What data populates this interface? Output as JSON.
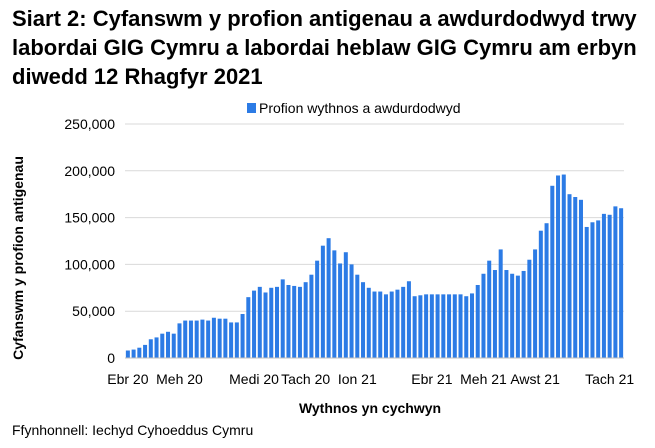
{
  "title": "Siart 2: Cyfanswm y profion antigenau a awdurdodwyd trwy labordai GIG Cymru a labordai heblaw GIG Cymru am erbyn diwedd 12 Rhagfyr 2021",
  "source": "Ffynhonnell: Iechyd Cyhoeddus Cymru",
  "colors": {
    "bar": "#2c7be5",
    "grid": "#d9d9d9"
  },
  "chart_data": {
    "type": "bar",
    "title": "Siart 2: Cyfanswm y profion antigenau a awdurdodwyd trwy labordai GIG Cymru a labordai heblaw GIG Cymru am erbyn diwedd 12 Rhagfyr 2021",
    "xlabel": "Wythnos yn cychwyn",
    "ylabel": "Cyfanswm y profion antigenau",
    "ylim": [
      0,
      250000
    ],
    "yticks": [
      0,
      50000,
      100000,
      150000,
      200000,
      250000
    ],
    "ytick_labels": [
      "0",
      "50,000",
      "100,000",
      "150,000",
      "200,000",
      "250,000"
    ],
    "xtick_labels": [
      {
        "label": "Ebr 20",
        "index": 0
      },
      {
        "label": "Meh 20",
        "index": 9
      },
      {
        "label": "Medi 20",
        "index": 22
      },
      {
        "label": "Tach 20",
        "index": 31
      },
      {
        "label": "Ion 21",
        "index": 40
      },
      {
        "label": "Ebr 21",
        "index": 53
      },
      {
        "label": "Meh 21",
        "index": 62
      },
      {
        "label": "Awst 21",
        "index": 71
      },
      {
        "label": "Tach 21",
        "index": 84
      }
    ],
    "legend": "top",
    "grid": true,
    "series": [
      {
        "name": "Profion wythnos a awdurdodwyd",
        "values": [
          8000,
          9000,
          11000,
          14000,
          20000,
          22000,
          26000,
          28000,
          26000,
          37000,
          40000,
          40000,
          40000,
          41000,
          40000,
          43000,
          42000,
          42000,
          38000,
          38000,
          47000,
          65000,
          72000,
          76000,
          70000,
          75000,
          76000,
          84000,
          78000,
          77000,
          76000,
          81000,
          89000,
          104000,
          120000,
          128000,
          115000,
          101000,
          113000,
          100000,
          89000,
          81000,
          75000,
          71000,
          71000,
          68000,
          71000,
          73000,
          76000,
          82000,
          66000,
          67000,
          68000,
          68000,
          68000,
          68000,
          68000,
          68000,
          68000,
          66000,
          69000,
          78000,
          90000,
          104000,
          94000,
          116000,
          94000,
          90000,
          88000,
          93000,
          105000,
          116000,
          136000,
          144000,
          184000,
          195000,
          196000,
          175000,
          172000,
          169000,
          140000,
          145000,
          147000,
          154000,
          153000,
          162000,
          160000
        ]
      }
    ]
  }
}
